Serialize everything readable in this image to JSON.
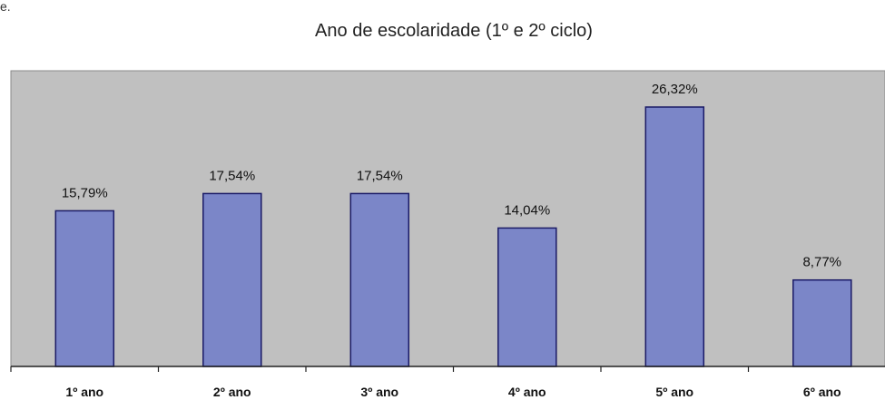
{
  "top_fragment": "e.",
  "chart_data": {
    "type": "bar",
    "title": "Ano de escolaridade (1º e 2º ciclo)",
    "xlabel": "",
    "ylabel": "",
    "categories": [
      "1º ano",
      "2º ano",
      "3º ano",
      "4º ano",
      "5º ano",
      "6º ano"
    ],
    "values": [
      15.79,
      17.54,
      17.54,
      14.04,
      26.32,
      8.77
    ],
    "data_labels": [
      "15,79%",
      "17,54%",
      "17,54%",
      "14,04%",
      "26,32%",
      "8,77%"
    ],
    "ylim": [
      0,
      30
    ],
    "grid": false,
    "legend": "none",
    "colors": {
      "plot_background": "#c0c0c0",
      "bar_fill": "#7b86c8",
      "bar_stroke": "#1a1a66",
      "axis": "#222222",
      "plot_border": "#8a8a8a"
    }
  }
}
